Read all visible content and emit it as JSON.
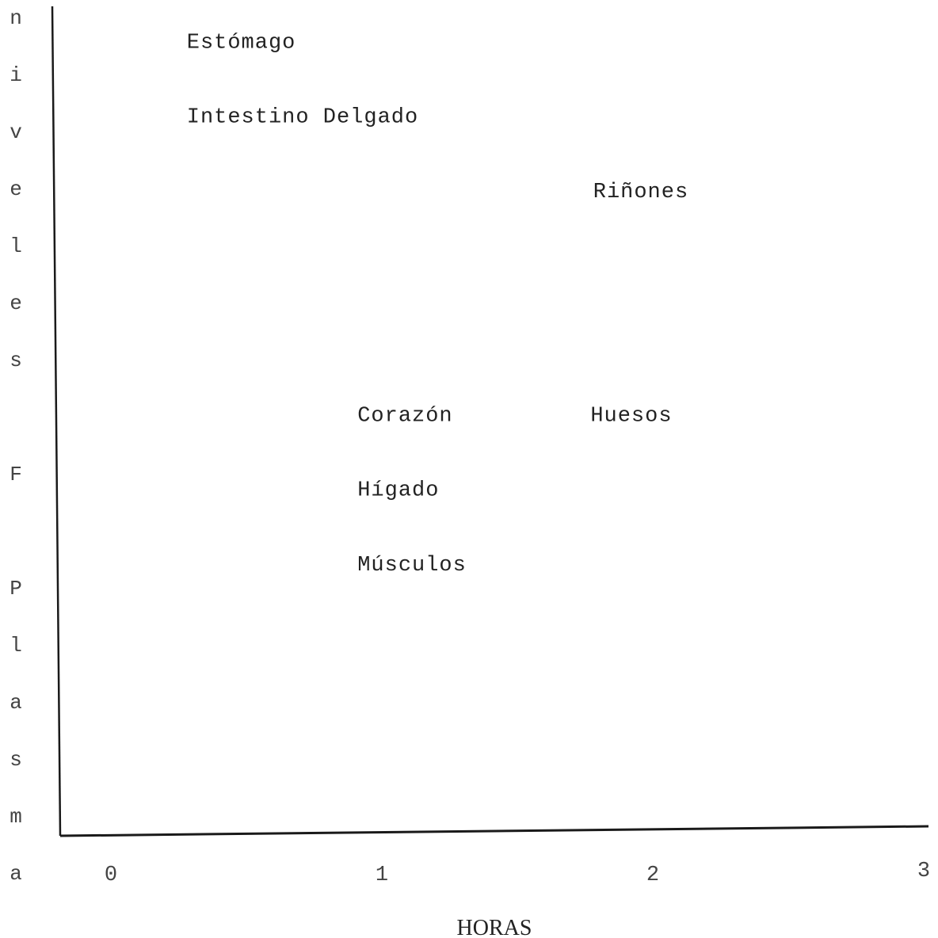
{
  "chart_data": {
    "type": "scatter",
    "title": "",
    "xlabel": "HORAS",
    "ylabel_letters": [
      "n",
      "i",
      "v",
      "e",
      "l",
      "e",
      "s",
      "",
      "F",
      "",
      "P",
      "l",
      "a",
      "s",
      "m",
      "a"
    ],
    "x_ticks": [
      "0",
      "1",
      "2",
      "3"
    ],
    "xlim": [
      0,
      3
    ],
    "grid": false,
    "legend": "none",
    "points": [
      {
        "label": "Estómago",
        "x": 0.28,
        "y": 0.95
      },
      {
        "label": "Intestino Delgado",
        "x": 0.28,
        "y": 0.86
      },
      {
        "label": "Riñones",
        "x": 1.78,
        "y": 0.77
      },
      {
        "label": "Corazón",
        "x": 0.91,
        "y": 0.5
      },
      {
        "label": "Huesos",
        "x": 1.77,
        "y": 0.5
      },
      {
        "label": "Hígado",
        "x": 0.91,
        "y": 0.41
      },
      {
        "label": "Músculos",
        "x": 0.91,
        "y": 0.32
      }
    ]
  }
}
